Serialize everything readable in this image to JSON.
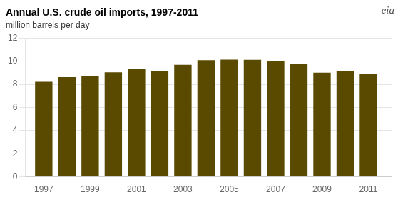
{
  "chart_data": {
    "type": "bar",
    "title": "Annual U.S. crude oil imports, 1997-2011",
    "subtitle": "million barrels per day",
    "x": [
      1997,
      1998,
      1999,
      2000,
      2001,
      2002,
      2003,
      2004,
      2005,
      2006,
      2007,
      2008,
      2009,
      2010,
      2011
    ],
    "values": [
      8.22,
      8.61,
      8.72,
      9.04,
      9.33,
      9.14,
      9.68,
      10.09,
      10.13,
      10.11,
      10.03,
      9.78,
      9.01,
      9.18,
      8.9
    ],
    "color": "#5a4a00",
    "xlim": [
      1996.2,
      2012.0
    ],
    "xticks": [
      1997,
      1999,
      2001,
      2003,
      2005,
      2007,
      2009,
      2011
    ],
    "ylim": [
      0,
      12
    ],
    "yticks": [
      0,
      2,
      4,
      6,
      8,
      10,
      12
    ],
    "grid": true,
    "annotations": [
      "eia"
    ]
  }
}
